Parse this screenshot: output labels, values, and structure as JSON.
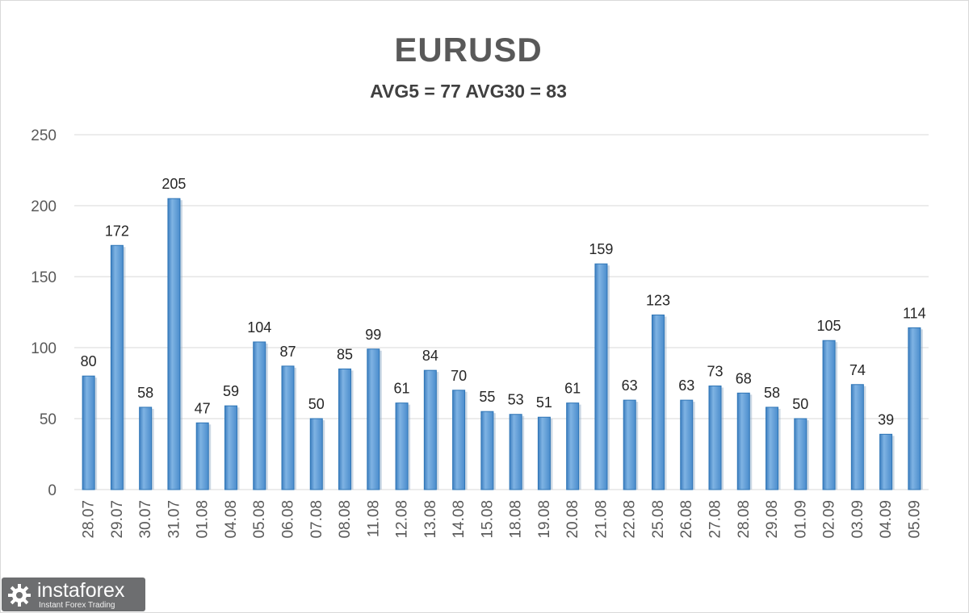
{
  "chart_data": {
    "type": "bar",
    "title": "EURUSD",
    "subtitle": "AVG5 = 77 AVG30 = 83",
    "categories": [
      "28.07",
      "29.07",
      "30.07",
      "31.07",
      "01.08",
      "04.08",
      "05.08",
      "06.08",
      "07.08",
      "08.08",
      "11.08",
      "12.08",
      "13.08",
      "14.08",
      "15.08",
      "18.08",
      "19.08",
      "20.08",
      "21.08",
      "22.08",
      "25.08",
      "26.08",
      "27.08",
      "28.08",
      "29.08",
      "01.09",
      "02.09",
      "03.09",
      "04.09",
      "05.09"
    ],
    "values": [
      80,
      172,
      58,
      205,
      47,
      59,
      104,
      87,
      50,
      85,
      99,
      61,
      84,
      70,
      55,
      53,
      51,
      61,
      159,
      63,
      123,
      63,
      73,
      68,
      58,
      50,
      105,
      74,
      39,
      114
    ],
    "ylim": [
      0,
      250
    ],
    "yticks": [
      0,
      50,
      100,
      150,
      200,
      250
    ],
    "grid": true,
    "bar_color": "#5b9bd5",
    "bar_edge_color": "#2e75b6"
  },
  "logo": {
    "name": "instaforex",
    "tagline": "Instant Forex Trading"
  }
}
